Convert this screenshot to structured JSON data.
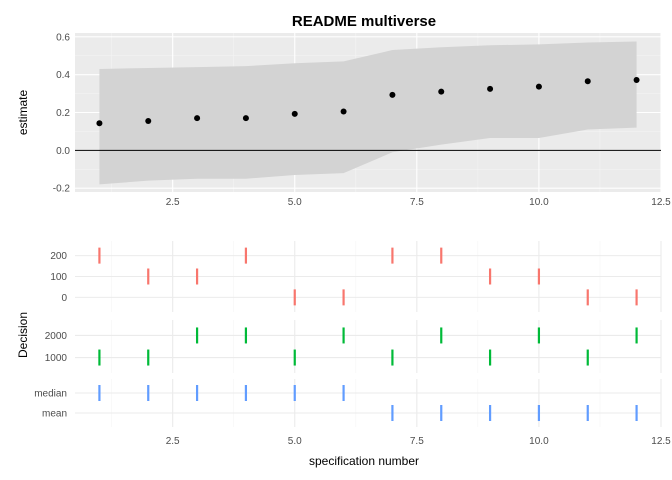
{
  "chart_data": [
    {
      "type": "scatter",
      "title": "README multiverse",
      "xlabel": "",
      "ylabel": "estimate",
      "xlim": [
        0.5,
        12.5
      ],
      "ylim": [
        -0.22,
        0.62
      ],
      "x_ticks": [
        2.5,
        5.0,
        7.5,
        10.0,
        12.5
      ],
      "x_tick_labels": [
        "2.5",
        "5.0",
        "7.5",
        "10.0",
        "12.5"
      ],
      "y_ticks": [
        -0.2,
        0.0,
        0.2,
        0.4,
        0.6
      ],
      "y_tick_labels": [
        "-0.2",
        "0.0",
        "0.2",
        "0.4",
        "0.6"
      ],
      "reference_line": 0,
      "ribbon_color": "#d3d3d3",
      "point_color": "#000000",
      "grid": true,
      "x": [
        1,
        2,
        3,
        4,
        5,
        6,
        7,
        8,
        9,
        10,
        11,
        12
      ],
      "estimate": [
        0.143,
        0.155,
        0.17,
        0.17,
        0.193,
        0.205,
        0.293,
        0.31,
        0.325,
        0.337,
        0.365,
        0.372
      ],
      "conf_low": [
        -0.18,
        -0.16,
        -0.15,
        -0.15,
        -0.13,
        -0.12,
        -0.01,
        0.03,
        0.065,
        0.065,
        0.11,
        0.12
      ],
      "conf_high": [
        0.43,
        0.435,
        0.44,
        0.445,
        0.46,
        0.47,
        0.53,
        0.545,
        0.555,
        0.56,
        0.57,
        0.575
      ]
    },
    {
      "type": "scatter",
      "title": "",
      "xlabel": "specification number",
      "ylabel": "Decision",
      "xlim": [
        0.5,
        12.5
      ],
      "x_ticks": [
        2.5,
        5.0,
        7.5,
        10.0,
        12.5
      ],
      "x_tick_labels": [
        "2.5",
        "5.0",
        "7.5",
        "10.0",
        "12.5"
      ],
      "grid": true,
      "facets": [
        {
          "levels": [
            "200",
            "100",
            "0"
          ],
          "color": "#f8766d",
          "x": [
            1,
            2,
            3,
            4,
            5,
            6,
            7,
            8,
            9,
            10,
            11,
            12
          ],
          "y": [
            "200",
            "100",
            "100",
            "200",
            "0",
            "0",
            "200",
            "200",
            "100",
            "100",
            "0",
            "0"
          ]
        },
        {
          "levels": [
            "2000",
            "1000"
          ],
          "color": "#00ba38",
          "x": [
            1,
            2,
            3,
            4,
            5,
            6,
            7,
            8,
            9,
            10,
            11,
            12
          ],
          "y": [
            "1000",
            "1000",
            "2000",
            "2000",
            "1000",
            "2000",
            "1000",
            "2000",
            "1000",
            "2000",
            "1000",
            "2000"
          ]
        },
        {
          "levels": [
            "median",
            "mean"
          ],
          "color": "#619cff",
          "x": [
            1,
            2,
            3,
            4,
            5,
            6,
            7,
            8,
            9,
            10,
            11,
            12
          ],
          "y": [
            "median",
            "median",
            "median",
            "median",
            "median",
            "median",
            "mean",
            "mean",
            "mean",
            "mean",
            "mean",
            "mean"
          ]
        }
      ]
    }
  ]
}
